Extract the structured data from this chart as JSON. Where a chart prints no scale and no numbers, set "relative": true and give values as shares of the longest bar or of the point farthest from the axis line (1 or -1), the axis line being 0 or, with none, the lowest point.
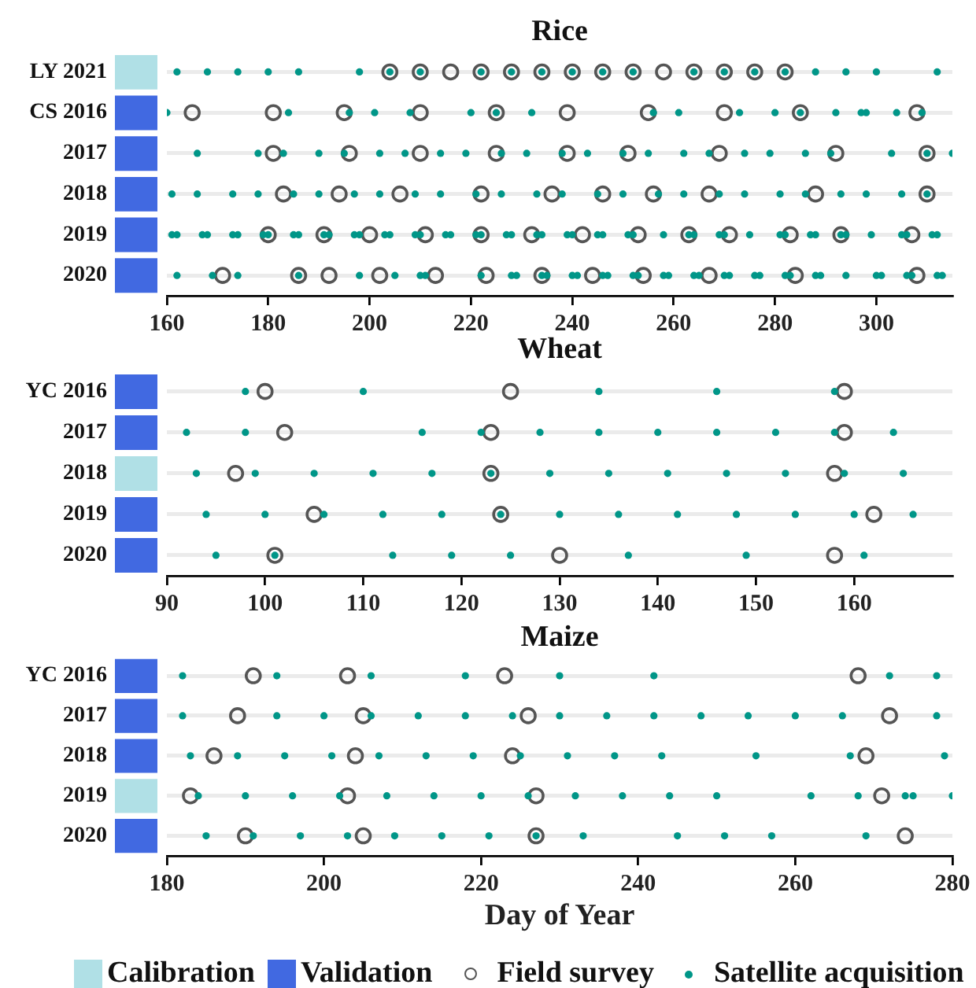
{
  "chart_data": [
    {
      "type": "bar",
      "orientation": "horizontal",
      "relative": true,
      "stacked": true,
      "tick_labels": false,
      "categories": [
        "LY 2021",
        "CS 2016",
        "2017",
        "2018",
        "2019",
        "2020"
      ],
      "series": [
        {
          "color": "#b0e0e6",
          "values": [
            1,
            null,
            null,
            null,
            null,
            null
          ]
        },
        {
          "color": "#4169e1",
          "values": [
            null,
            1,
            1,
            1,
            1,
            1
          ]
        }
      ]
    },
    {
      "type": "scatter",
      "title": "Rice",
      "orientation": "horizontal",
      "categories": [
        "LY 2021",
        "CS 2016",
        "2017",
        "2018",
        "2019",
        "2020"
      ],
      "xlim": [
        160,
        315
      ],
      "xticks": [
        160,
        180,
        200,
        220,
        240,
        260,
        280,
        300
      ],
      "grid": "y",
      "marker": "circle",
      "series": [
        {
          "color": "#555555",
          "values": [
            204,
            165,
            181,
            183,
            180,
            171
          ]
        },
        {
          "color": "#555555",
          "values": [
            210,
            181,
            196,
            194,
            191,
            186
          ]
        },
        {
          "color": "#555555",
          "values": [
            216,
            195,
            210,
            206,
            200,
            192
          ]
        },
        {
          "color": "#555555",
          "values": [
            222,
            210,
            225,
            222,
            211,
            202
          ]
        },
        {
          "color": "#555555",
          "values": [
            228,
            225,
            239,
            236,
            222,
            213
          ]
        },
        {
          "color": "#555555",
          "values": [
            234,
            239,
            251,
            246,
            232,
            223
          ]
        },
        {
          "color": "#555555",
          "values": [
            240,
            255,
            269,
            256,
            242,
            234
          ]
        },
        {
          "color": "#555555",
          "values": [
            246,
            270,
            292,
            267,
            253,
            244
          ]
        },
        {
          "color": "#555555",
          "values": [
            252,
            285,
            310,
            288,
            263,
            254
          ]
        },
        {
          "color": "#555555",
          "values": [
            258,
            308,
            null,
            310,
            271,
            267
          ]
        },
        {
          "color": "#555555",
          "values": [
            264,
            null,
            null,
            null,
            283,
            284
          ]
        },
        {
          "color": "#555555",
          "values": [
            270,
            null,
            null,
            null,
            293,
            308
          ]
        },
        {
          "color": "#555555",
          "values": [
            276,
            null,
            null,
            null,
            307,
            null
          ]
        },
        {
          "color": "#555555",
          "values": [
            282,
            null,
            null,
            null,
            null,
            null
          ]
        },
        {
          "color": "#009688",
          "values": [
            162,
            160,
            166,
            161,
            161,
            162
          ]
        },
        {
          "color": "#009688",
          "values": [
            168,
            184,
            178,
            166,
            162,
            169
          ]
        },
        {
          "color": "#009688",
          "values": [
            174,
            196,
            183,
            173,
            167,
            174
          ]
        },
        {
          "color": "#009688",
          "values": [
            180,
            201,
            190,
            178,
            168,
            186
          ]
        },
        {
          "color": "#009688",
          "values": [
            186,
            208,
            195,
            185,
            173,
            198
          ]
        },
        {
          "color": "#009688",
          "values": [
            198,
            220,
            202,
            190,
            174,
            205
          ]
        },
        {
          "color": "#009688",
          "values": [
            204,
            225,
            207,
            197,
            179,
            210
          ]
        },
        {
          "color": "#009688",
          "values": [
            210,
            232,
            214,
            202,
            180,
            211
          ]
        },
        {
          "color": "#009688",
          "values": [
            222,
            256,
            219,
            209,
            185,
            222
          ]
        },
        {
          "color": "#009688",
          "values": [
            228,
            261,
            226,
            214,
            186,
            228
          ]
        },
        {
          "color": "#009688",
          "values": [
            234,
            273,
            231,
            221,
            191,
            229
          ]
        },
        {
          "color": "#009688",
          "values": [
            240,
            280,
            238,
            226,
            192,
            234
          ]
        },
        {
          "color": "#009688",
          "values": [
            246,
            285,
            243,
            233,
            197,
            235
          ]
        },
        {
          "color": "#009688",
          "values": [
            252,
            292,
            250,
            238,
            198,
            240
          ]
        },
        {
          "color": "#009688",
          "values": [
            264,
            297,
            255,
            245,
            203,
            241
          ]
        },
        {
          "color": "#009688",
          "values": [
            270,
            298,
            262,
            250,
            204,
            246
          ]
        },
        {
          "color": "#009688",
          "values": [
            276,
            304,
            267,
            257,
            209,
            247
          ]
        },
        {
          "color": "#009688",
          "values": [
            282,
            309,
            274,
            262,
            210,
            252
          ]
        },
        {
          "color": "#009688",
          "values": [
            288,
            null,
            279,
            269,
            215,
            253
          ]
        },
        {
          "color": "#009688",
          "values": [
            294,
            null,
            286,
            274,
            216,
            258
          ]
        },
        {
          "color": "#009688",
          "values": [
            300,
            null,
            291,
            281,
            221,
            259
          ]
        },
        {
          "color": "#009688",
          "values": [
            312,
            null,
            303,
            286,
            222,
            264
          ]
        },
        {
          "color": "#009688",
          "values": [
            null,
            null,
            310,
            293,
            227,
            265
          ]
        },
        {
          "color": "#009688",
          "values": [
            null,
            null,
            315,
            298,
            228,
            270
          ]
        },
        {
          "color": "#009688",
          "values": [
            null,
            null,
            null,
            305,
            233,
            271
          ]
        },
        {
          "color": "#009688",
          "values": [
            null,
            null,
            null,
            310,
            234,
            276
          ]
        },
        {
          "color": "#009688",
          "values": [
            null,
            null,
            null,
            null,
            239,
            277
          ]
        },
        {
          "color": "#009688",
          "values": [
            null,
            null,
            null,
            null,
            240,
            282
          ]
        },
        {
          "color": "#009688",
          "values": [
            null,
            null,
            null,
            null,
            245,
            283
          ]
        },
        {
          "color": "#009688",
          "values": [
            null,
            null,
            null,
            null,
            246,
            288
          ]
        },
        {
          "color": "#009688",
          "values": [
            null,
            null,
            null,
            null,
            251,
            289
          ]
        },
        {
          "color": "#009688",
          "values": [
            null,
            null,
            null,
            null,
            252,
            294
          ]
        },
        {
          "color": "#009688",
          "values": [
            null,
            null,
            null,
            null,
            258,
            300
          ]
        },
        {
          "color": "#009688",
          "values": [
            null,
            null,
            null,
            null,
            263,
            301
          ]
        },
        {
          "color": "#009688",
          "values": [
            null,
            null,
            null,
            null,
            264,
            306
          ]
        },
        {
          "color": "#009688",
          "values": [
            null,
            null,
            null,
            null,
            269,
            307
          ]
        },
        {
          "color": "#009688",
          "values": [
            null,
            null,
            null,
            null,
            270,
            312
          ]
        },
        {
          "color": "#009688",
          "values": [
            null,
            null,
            null,
            null,
            275,
            313
          ]
        },
        {
          "color": "#009688",
          "values": [
            null,
            null,
            null,
            null,
            281,
            null
          ]
        },
        {
          "color": "#009688",
          "values": [
            null,
            null,
            null,
            null,
            282,
            null
          ]
        },
        {
          "color": "#009688",
          "values": [
            null,
            null,
            null,
            null,
            287,
            null
          ]
        },
        {
          "color": "#009688",
          "values": [
            null,
            null,
            null,
            null,
            288,
            null
          ]
        },
        {
          "color": "#009688",
          "values": [
            null,
            null,
            null,
            null,
            293,
            null
          ]
        },
        {
          "color": "#009688",
          "values": [
            null,
            null,
            null,
            null,
            294,
            null
          ]
        },
        {
          "color": "#009688",
          "values": [
            null,
            null,
            null,
            null,
            299,
            null
          ]
        },
        {
          "color": "#009688",
          "values": [
            null,
            null,
            null,
            null,
            305,
            null
          ]
        },
        {
          "color": "#009688",
          "values": [
            null,
            null,
            null,
            null,
            306,
            null
          ]
        },
        {
          "color": "#009688",
          "values": [
            null,
            null,
            null,
            null,
            311,
            null
          ]
        },
        {
          "color": "#009688",
          "values": [
            null,
            null,
            null,
            null,
            312,
            null
          ]
        }
      ]
    },
    {
      "type": "bar",
      "orientation": "horizontal",
      "relative": true,
      "stacked": true,
      "tick_labels": false,
      "categories": [
        "YC 2016",
        "2017",
        "2018",
        "2019",
        "2020"
      ],
      "series": [
        {
          "color": "#b0e0e6",
          "values": [
            null,
            null,
            1,
            null,
            null
          ]
        },
        {
          "color": "#4169e1",
          "values": [
            1,
            1,
            null,
            1,
            1
          ]
        }
      ]
    },
    {
      "type": "scatter",
      "title": "Wheat",
      "orientation": "horizontal",
      "categories": [
        "YC 2016",
        "2017",
        "2018",
        "2019",
        "2020"
      ],
      "xlim": [
        90,
        170
      ],
      "xticks": [
        90,
        100,
        110,
        120,
        130,
        140,
        150,
        160
      ],
      "grid": "y",
      "marker": "circle",
      "series": [
        {
          "color": "#555555",
          "values": [
            100,
            102,
            97,
            105,
            101
          ]
        },
        {
          "color": "#555555",
          "values": [
            125,
            123,
            123,
            124,
            130
          ]
        },
        {
          "color": "#555555",
          "values": [
            159,
            159,
            158,
            162,
            158
          ]
        },
        {
          "color": "#009688",
          "values": [
            98,
            92,
            93,
            94,
            95
          ]
        },
        {
          "color": "#009688",
          "values": [
            110,
            98,
            99,
            100,
            101
          ]
        },
        {
          "color": "#009688",
          "values": [
            134,
            116,
            105,
            106,
            113
          ]
        },
        {
          "color": "#009688",
          "values": [
            146,
            122,
            111,
            112,
            119
          ]
        },
        {
          "color": "#009688",
          "values": [
            158,
            128,
            117,
            118,
            125
          ]
        },
        {
          "color": "#009688",
          "values": [
            null,
            134,
            123,
            124,
            137
          ]
        },
        {
          "color": "#009688",
          "values": [
            null,
            140,
            129,
            130,
            149
          ]
        },
        {
          "color": "#009688",
          "values": [
            null,
            146,
            135,
            136,
            161
          ]
        },
        {
          "color": "#009688",
          "values": [
            null,
            152,
            141,
            142,
            null
          ]
        },
        {
          "color": "#009688",
          "values": [
            null,
            158,
            147,
            148,
            null
          ]
        },
        {
          "color": "#009688",
          "values": [
            null,
            164,
            153,
            154,
            null
          ]
        },
        {
          "color": "#009688",
          "values": [
            null,
            null,
            159,
            160,
            null
          ]
        },
        {
          "color": "#009688",
          "values": [
            null,
            null,
            165,
            166,
            null
          ]
        }
      ]
    },
    {
      "type": "bar",
      "orientation": "horizontal",
      "relative": true,
      "stacked": true,
      "tick_labels": false,
      "legend": "bottom",
      "categories": [
        "YC 2016",
        "2017",
        "2018",
        "2019",
        "2020"
      ],
      "series": [
        {
          "name": "Calibration",
          "color": "#b0e0e6",
          "values": [
            null,
            null,
            null,
            1,
            null
          ]
        },
        {
          "name": "Validation",
          "color": "#4169e1",
          "values": [
            1,
            1,
            1,
            null,
            1
          ]
        }
      ]
    },
    {
      "type": "scatter",
      "title": "Maize",
      "xlabel": "Day of Year",
      "orientation": "horizontal",
      "categories": [
        "YC 2016",
        "2017",
        "2018",
        "2019",
        "2020"
      ],
      "xlim": [
        180,
        280
      ],
      "xticks": [
        180,
        200,
        220,
        240,
        260,
        280
      ],
      "grid": "y",
      "marker": "circle",
      "legend": "bottom",
      "series": [
        {
          "name": "Field survey",
          "color": "#555555",
          "values": [
            191,
            189,
            186,
            183,
            190
          ]
        },
        {
          "color": "#555555",
          "values": [
            203,
            205,
            204,
            203,
            205
          ]
        },
        {
          "color": "#555555",
          "values": [
            223,
            226,
            224,
            227,
            227
          ]
        },
        {
          "color": "#555555",
          "values": [
            268,
            272,
            269,
            271,
            274
          ]
        },
        {
          "name": "Satellite acquisition",
          "color": "#009688",
          "values": [
            182,
            182,
            183,
            184,
            185
          ]
        },
        {
          "color": "#009688",
          "values": [
            194,
            194,
            189,
            190,
            191
          ]
        },
        {
          "color": "#009688",
          "values": [
            206,
            200,
            195,
            196,
            197
          ]
        },
        {
          "color": "#009688",
          "values": [
            218,
            206,
            201,
            202,
            203
          ]
        },
        {
          "color": "#009688",
          "values": [
            230,
            212,
            207,
            208,
            209
          ]
        },
        {
          "color": "#009688",
          "values": [
            242,
            218,
            213,
            214,
            215
          ]
        },
        {
          "color": "#009688",
          "values": [
            272,
            224,
            219,
            220,
            221
          ]
        },
        {
          "color": "#009688",
          "values": [
            278,
            230,
            225,
            226,
            227
          ]
        },
        {
          "color": "#009688",
          "values": [
            null,
            236,
            231,
            232,
            233
          ]
        },
        {
          "color": "#009688",
          "values": [
            null,
            242,
            237,
            238,
            245
          ]
        },
        {
          "color": "#009688",
          "values": [
            null,
            248,
            243,
            244,
            251
          ]
        },
        {
          "color": "#009688",
          "values": [
            null,
            254,
            255,
            250,
            257
          ]
        },
        {
          "color": "#009688",
          "values": [
            null,
            260,
            267,
            262,
            269
          ]
        },
        {
          "color": "#009688",
          "values": [
            null,
            266,
            279,
            268,
            null
          ]
        },
        {
          "color": "#009688",
          "values": [
            null,
            278,
            null,
            274,
            null
          ]
        },
        {
          "color": "#009688",
          "values": [
            null,
            null,
            null,
            275,
            null
          ]
        },
        {
          "color": "#009688",
          "values": [
            null,
            null,
            null,
            280,
            null
          ]
        }
      ]
    }
  ]
}
